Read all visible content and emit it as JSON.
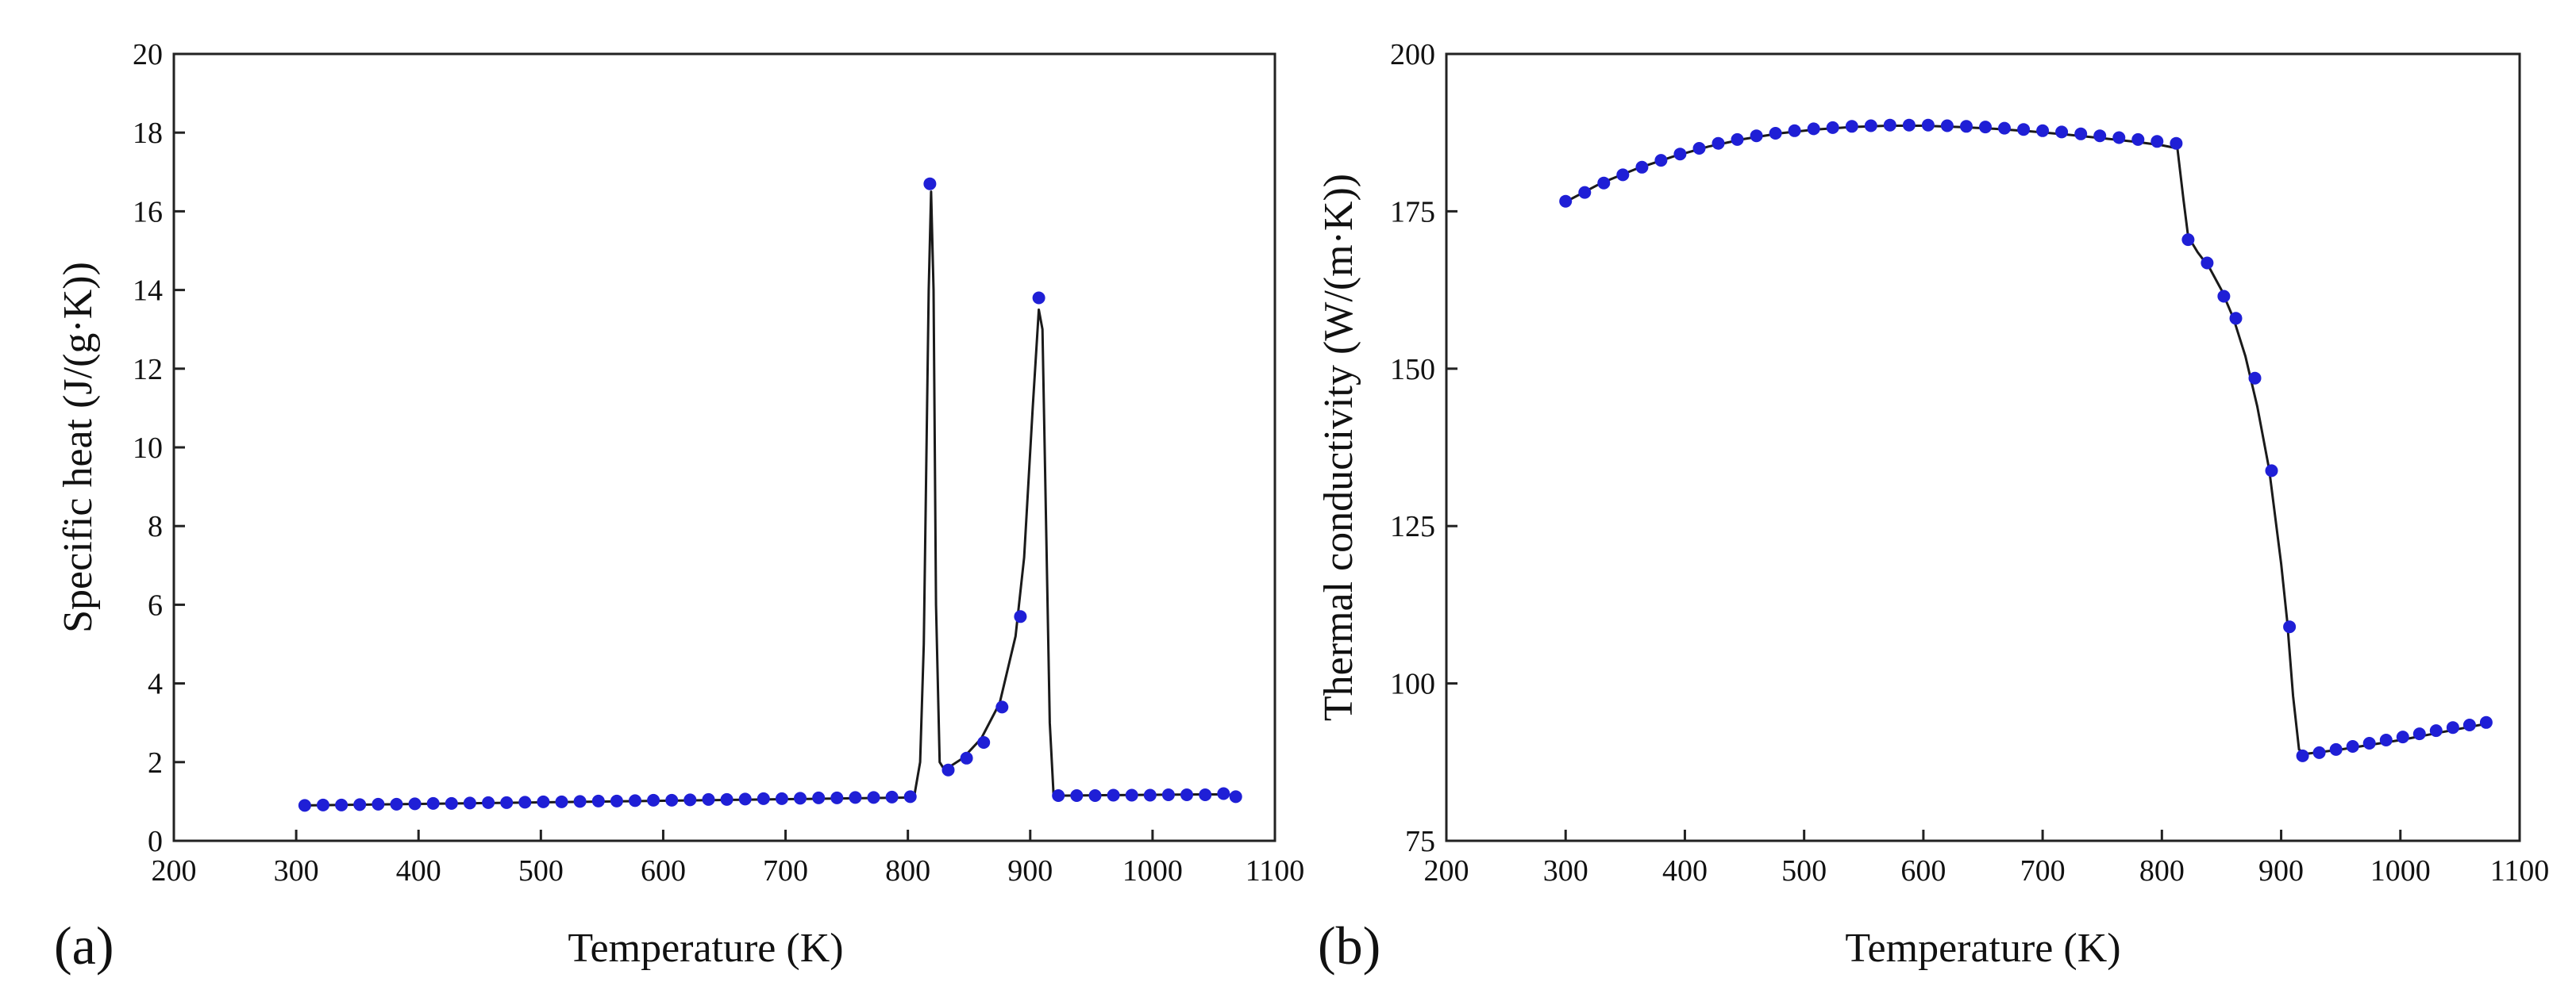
{
  "colors": {
    "line": "#1a1a1a",
    "marker": "#1f1fd6",
    "axis": "#222222"
  },
  "chart_data": [
    {
      "type": "line",
      "panel_label": "(a)",
      "title": "",
      "xlabel": "Temperature (K)",
      "ylabel": "Specific heat (J/(g·K))",
      "xlim": [
        200,
        1100
      ],
      "ylim": [
        0,
        20
      ],
      "xticks": [
        200,
        300,
        400,
        500,
        600,
        700,
        800,
        900,
        1000,
        1100
      ],
      "yticks": [
        0,
        2,
        4,
        6,
        8,
        10,
        12,
        14,
        16,
        18,
        20
      ],
      "grid": false,
      "legend": "none",
      "series": [
        {
          "name": "Specific heat",
          "line_x": [
            307,
            332,
            357,
            382,
            407,
            432,
            457,
            482,
            507,
            532,
            557,
            582,
            607,
            632,
            657,
            682,
            707,
            732,
            757,
            782,
            805,
            810,
            813,
            817,
            819,
            821,
            823,
            826,
            830,
            845,
            860,
            875,
            888,
            895,
            902,
            907,
            910,
            913,
            916,
            919,
            922,
            930,
            960,
            1000,
            1040,
            1060,
            1070
          ],
          "line_y": [
            0.9,
            0.91,
            0.92,
            0.93,
            0.94,
            0.95,
            0.96,
            0.97,
            0.98,
            0.99,
            1.0,
            1.01,
            1.02,
            1.03,
            1.04,
            1.05,
            1.06,
            1.07,
            1.08,
            1.09,
            1.1,
            2.0,
            5.0,
            14.0,
            16.5,
            14.0,
            6.0,
            2.0,
            1.8,
            2.1,
            2.6,
            3.5,
            5.2,
            7.2,
            11.0,
            13.5,
            13.0,
            8.0,
            3.0,
            1.2,
            1.15,
            1.15,
            1.16,
            1.17,
            1.18,
            1.18,
            1.15
          ],
          "marker_x": [
            307,
            322,
            337,
            352,
            367,
            382,
            397,
            412,
            427,
            442,
            457,
            472,
            487,
            502,
            517,
            532,
            547,
            562,
            577,
            592,
            607,
            622,
            637,
            652,
            667,
            682,
            697,
            712,
            727,
            742,
            757,
            772,
            787,
            802,
            818,
            833,
            848,
            862,
            877,
            892,
            907,
            923,
            938,
            953,
            968,
            983,
            998,
            1013,
            1028,
            1043,
            1058,
            1068
          ],
          "marker_y": [
            0.9,
            0.91,
            0.91,
            0.92,
            0.93,
            0.93,
            0.94,
            0.95,
            0.95,
            0.96,
            0.97,
            0.97,
            0.98,
            0.99,
            0.99,
            1.0,
            1.01,
            1.01,
            1.02,
            1.03,
            1.03,
            1.04,
            1.05,
            1.05,
            1.06,
            1.07,
            1.07,
            1.08,
            1.09,
            1.09,
            1.1,
            1.1,
            1.11,
            1.12,
            16.7,
            1.8,
            2.1,
            2.5,
            3.4,
            5.7,
            13.8,
            1.15,
            1.15,
            1.15,
            1.16,
            1.16,
            1.16,
            1.17,
            1.17,
            1.17,
            1.2,
            1.12
          ]
        }
      ]
    },
    {
      "type": "line",
      "panel_label": "(b)",
      "title": "",
      "xlabel": "Temperature (K)",
      "ylabel": "Thermal conductivity (W/(m·K))",
      "xlim": [
        200,
        1100
      ],
      "ylim": [
        75,
        200
      ],
      "xticks": [
        200,
        300,
        400,
        500,
        600,
        700,
        800,
        900,
        1000,
        1100
      ],
      "yticks": [
        75,
        100,
        125,
        150,
        175,
        200
      ],
      "grid": false,
      "legend": "none",
      "series": [
        {
          "name": "Thermal conductivity",
          "line_x": [
            300,
            330,
            360,
            390,
            420,
            450,
            480,
            510,
            540,
            570,
            600,
            630,
            660,
            690,
            720,
            750,
            780,
            800,
            813,
            818,
            822,
            830,
            840,
            850,
            860,
            870,
            880,
            890,
            900,
            905,
            910,
            915,
            920,
            950,
            1000,
            1050,
            1075
          ],
          "line_y": [
            176.5,
            179.5,
            181.8,
            183.7,
            185.3,
            186.5,
            187.4,
            188.0,
            188.4,
            188.6,
            188.6,
            188.4,
            188.1,
            187.7,
            187.2,
            186.6,
            186.0,
            185.5,
            185.0,
            177.0,
            171.0,
            168.5,
            166.0,
            162.5,
            158.0,
            152.0,
            144.0,
            134.0,
            119.0,
            110.0,
            98.0,
            89.5,
            88.8,
            89.5,
            91.0,
            92.8,
            93.7
          ],
          "marker_x": [
            300,
            316,
            332,
            348,
            364,
            380,
            396,
            412,
            428,
            444,
            460,
            476,
            492,
            508,
            524,
            540,
            556,
            572,
            588,
            604,
            620,
            636,
            652,
            668,
            684,
            700,
            716,
            732,
            748,
            764,
            780,
            796,
            812,
            822,
            838,
            852,
            862,
            878,
            892,
            907,
            918,
            932,
            946,
            960,
            974,
            988,
            1002,
            1016,
            1030,
            1044,
            1058,
            1072
          ],
          "marker_y": [
            176.6,
            178.0,
            179.5,
            180.8,
            182.0,
            183.1,
            184.1,
            185.0,
            185.8,
            186.4,
            187.0,
            187.4,
            187.8,
            188.1,
            188.3,
            188.5,
            188.6,
            188.7,
            188.7,
            188.7,
            188.6,
            188.5,
            188.4,
            188.2,
            188.0,
            187.8,
            187.6,
            187.3,
            187.0,
            186.7,
            186.4,
            186.1,
            185.8,
            170.5,
            166.8,
            161.5,
            158.0,
            148.5,
            133.8,
            109.0,
            88.5,
            89.0,
            89.5,
            90.0,
            90.5,
            91.0,
            91.5,
            92.0,
            92.5,
            93.0,
            93.4,
            93.8
          ]
        }
      ]
    }
  ]
}
